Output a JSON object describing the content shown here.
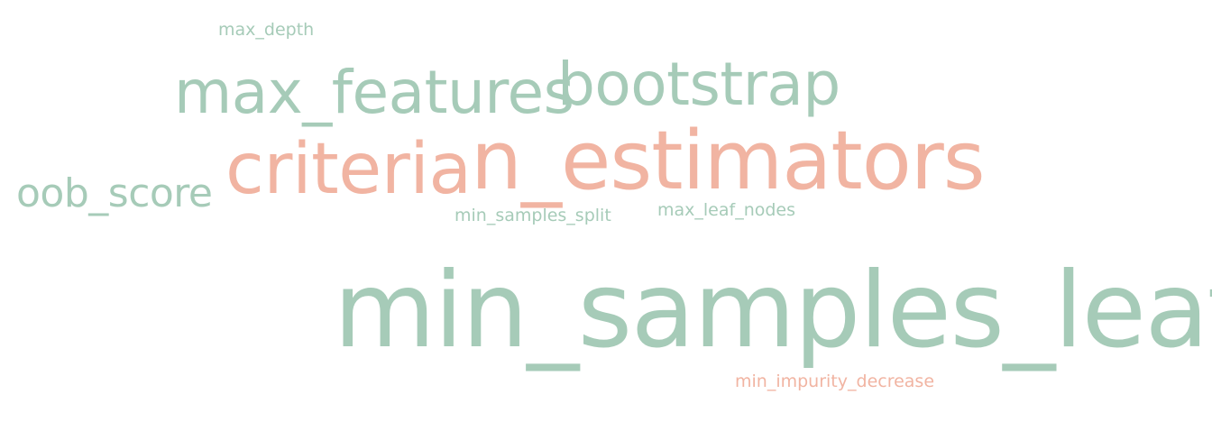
{
  "colors": {
    "green": "#a6cbb8",
    "salmon": "#f1b4a2",
    "background": "#ffffff"
  },
  "words": [
    {
      "key": "max_depth",
      "text": "max_depth",
      "color": "#a6cbb8"
    },
    {
      "key": "max_features",
      "text": "max_features",
      "color": "#a6cbb8"
    },
    {
      "key": "bootstrap",
      "text": "bootstrap",
      "color": "#a6cbb8"
    },
    {
      "key": "criteria",
      "text": "criteria",
      "color": "#f1b4a2"
    },
    {
      "key": "n_estimators",
      "text": "n_estimators",
      "color": "#f1b4a2"
    },
    {
      "key": "oob_score",
      "text": "oob_score",
      "color": "#a6cbb8"
    },
    {
      "key": "min_samples_split",
      "text": "min_samples_split",
      "color": "#a6cbb8"
    },
    {
      "key": "max_leaf_nodes",
      "text": "max_leaf_nodes",
      "color": "#a6cbb8"
    },
    {
      "key": "min_samples_leaf",
      "text": "min_samples_leaf",
      "color": "#a6cbb8"
    },
    {
      "key": "min_impurity_decrease",
      "text": "min_impurity_decrease",
      "color": "#f1b4a2"
    }
  ]
}
